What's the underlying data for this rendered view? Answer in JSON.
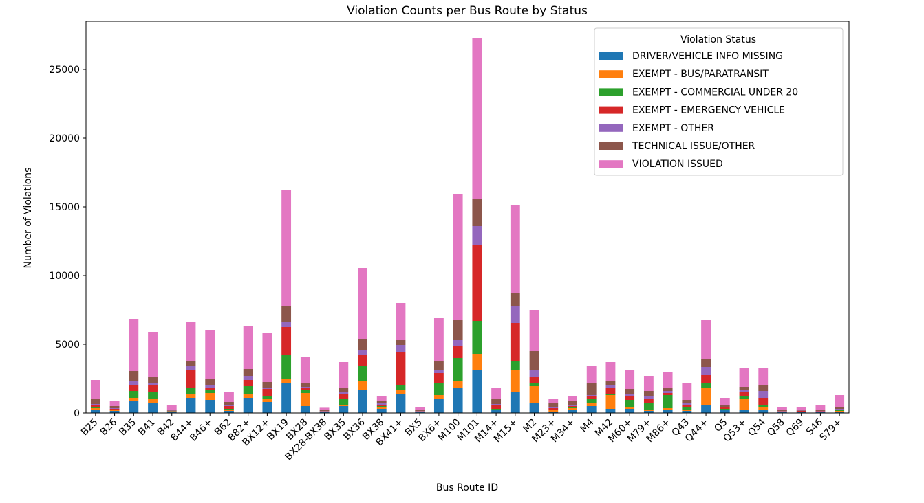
{
  "chart_data": {
    "type": "bar",
    "stacked": true,
    "title": "Violation Counts per Bus Route by Status",
    "xlabel": "Bus Route ID",
    "ylabel": "Number of Violations",
    "ylim": [
      0,
      28500
    ],
    "yticks": [
      0,
      5000,
      10000,
      15000,
      20000,
      25000
    ],
    "grid": false,
    "legend": {
      "title": "Violation Status",
      "placement": "top-right"
    },
    "categories": [
      "B25",
      "B26",
      "B35",
      "B41",
      "B42",
      "B44+",
      "B46+",
      "B62",
      "B82+",
      "BX12+",
      "BX19",
      "BX28",
      "BX28-BX38",
      "BX35",
      "BX36",
      "BX38",
      "BX41+",
      "BX5",
      "BX6+",
      "M100",
      "M101",
      "M14+",
      "M15+",
      "M2",
      "M23+",
      "M34+",
      "M4",
      "M42",
      "M60+",
      "M79+",
      "M86+",
      "Q43",
      "Q44+",
      "Q5",
      "Q53+",
      "Q54",
      "Q58",
      "Q69",
      "S46",
      "S79+"
    ],
    "series": [
      {
        "name": "DRIVER/VEHICLE INFO MISSING",
        "color": "#1f77b4",
        "values": [
          200,
          150,
          900,
          700,
          80,
          1100,
          950,
          150,
          1100,
          800,
          2200,
          500,
          60,
          500,
          1700,
          300,
          1400,
          60,
          1050,
          1850,
          3100,
          200,
          1550,
          750,
          100,
          200,
          500,
          300,
          300,
          150,
          250,
          150,
          550,
          200,
          200,
          250,
          50,
          50,
          50,
          100
        ]
      },
      {
        "name": "EXEMPT - BUS/PARATRANSIT",
        "color": "#ff7f0e",
        "values": [
          150,
          50,
          200,
          300,
          30,
          300,
          500,
          100,
          250,
          200,
          300,
          950,
          30,
          100,
          600,
          100,
          300,
          30,
          250,
          500,
          1200,
          50,
          1550,
          1200,
          100,
          150,
          200,
          1000,
          150,
          100,
          100,
          100,
          1300,
          50,
          850,
          200,
          30,
          30,
          30,
          50
        ]
      },
      {
        "name": "EXEMPT - COMMERCIAL UNDER 20",
        "color": "#2ca02c",
        "values": [
          100,
          50,
          500,
          500,
          20,
          400,
          200,
          50,
          600,
          250,
          1750,
          200,
          20,
          400,
          1150,
          100,
          300,
          20,
          850,
          1650,
          2400,
          50,
          700,
          200,
          50,
          50,
          300,
          100,
          500,
          500,
          950,
          200,
          300,
          50,
          150,
          150,
          20,
          20,
          20,
          50
        ]
      },
      {
        "name": "EXEMPT - EMERGENCY VEHICLE",
        "color": "#d62728",
        "values": [
          100,
          50,
          400,
          500,
          20,
          1350,
          200,
          200,
          450,
          500,
          2000,
          150,
          20,
          400,
          800,
          100,
          2450,
          20,
          750,
          900,
          5500,
          300,
          2750,
          500,
          100,
          100,
          200,
          400,
          300,
          300,
          150,
          150,
          600,
          100,
          300,
          500,
          20,
          50,
          30,
          50
        ]
      },
      {
        "name": "EXEMPT - OTHER",
        "color": "#9467bd",
        "values": [
          100,
          50,
          300,
          200,
          20,
          250,
          150,
          50,
          300,
          100,
          400,
          100,
          20,
          150,
          300,
          100,
          500,
          20,
          200,
          400,
          1400,
          50,
          1200,
          500,
          50,
          50,
          100,
          200,
          150,
          200,
          150,
          100,
          600,
          50,
          150,
          500,
          20,
          20,
          20,
          50
        ]
      },
      {
        "name": "TECHNICAL ISSUE/OTHER",
        "color": "#8c564b",
        "values": [
          350,
          150,
          750,
          400,
          80,
          400,
          450,
          250,
          500,
          400,
          1150,
          300,
          80,
          300,
          850,
          200,
          350,
          80,
          700,
          1500,
          1950,
          350,
          1000,
          1350,
          300,
          300,
          850,
          350,
          350,
          350,
          250,
          250,
          550,
          150,
          250,
          400,
          60,
          80,
          100,
          150
        ]
      },
      {
        "name": "VIOLATION ISSUED",
        "color": "#e377c2",
        "values": [
          1400,
          400,
          3800,
          3300,
          330,
          2850,
          3600,
          750,
          3150,
          3600,
          8400,
          1900,
          150,
          1850,
          5150,
          350,
          2700,
          170,
          3100,
          9150,
          11700,
          850,
          6350,
          3000,
          350,
          350,
          1250,
          1350,
          1350,
          1100,
          1100,
          1250,
          2900,
          500,
          1400,
          1300,
          200,
          200,
          300,
          850
        ]
      }
    ]
  }
}
